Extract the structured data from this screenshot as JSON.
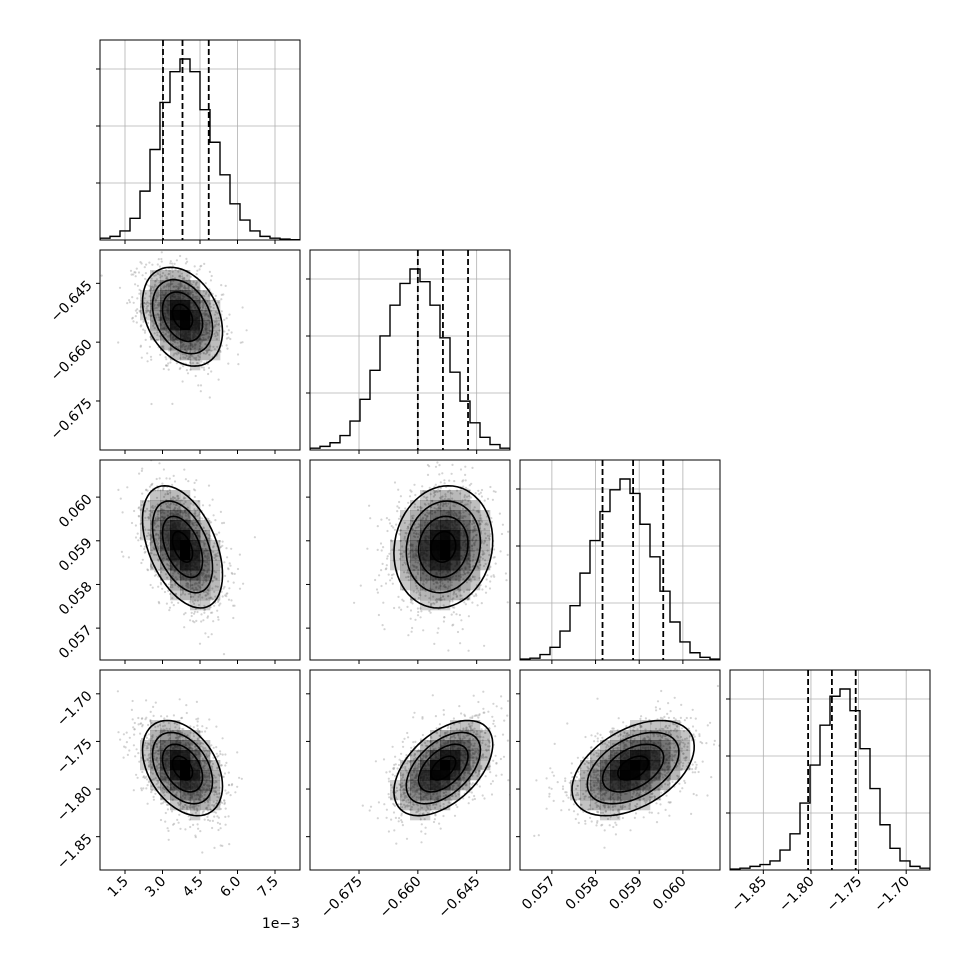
{
  "chart_data": {
    "type": "corner",
    "parameters": [
      {
        "range": [
          0.0005,
          0.0085
        ],
        "ticks": [
          0.0015,
          0.003,
          0.0045,
          0.006,
          0.0075
        ],
        "tick_labels": [
          "1.5",
          "3.0",
          "4.5",
          "6.0",
          "7.5"
        ],
        "offset_text": "1e−3",
        "mean": 0.0038,
        "sd": 0.0008,
        "quantiles": [
          0.00302,
          0.0038,
          0.00485
        ],
        "hist": [
          1,
          2,
          5,
          12,
          27,
          50,
          76,
          93,
          100,
          93,
          72,
          54,
          36,
          20,
          11,
          5,
          2,
          1,
          0.5,
          0.2
        ]
      },
      {
        "range": [
          -0.6875,
          -0.6365
        ],
        "ticks": [
          -0.675,
          -0.66,
          -0.645
        ],
        "tick_labels": [
          "−0.675",
          "−0.660",
          "−0.645"
        ],
        "offset_text": "",
        "mean": -0.6535,
        "sd": 0.0063,
        "quantiles": [
          -0.66,
          -0.6536,
          -0.6472
        ],
        "hist": [
          1,
          2,
          4,
          8,
          16,
          28,
          44,
          63,
          80,
          92,
          100,
          93,
          80,
          62,
          43,
          27,
          15,
          7,
          3,
          1
        ]
      },
      {
        "range": [
          0.05627,
          0.06085
        ],
        "ticks": [
          0.057,
          0.058,
          0.059,
          0.06
        ],
        "tick_labels": [
          "0.057",
          "0.058",
          "0.059",
          "0.060"
        ],
        "offset_text": "",
        "mean": 0.05886,
        "sd": 0.0007,
        "quantiles": [
          0.05816,
          0.05886,
          0.05955
        ],
        "hist": [
          0.5,
          1,
          3,
          7,
          16,
          30,
          48,
          66,
          82,
          94,
          100,
          92,
          75,
          57,
          38,
          21,
          10,
          4,
          1.5,
          0.5
        ]
      },
      {
        "range": [
          -1.885,
          -1.675
        ],
        "ticks": [
          -1.85,
          -1.8,
          -1.75,
          -1.7
        ],
        "tick_labels": [
          "−1.85",
          "−1.80",
          "−1.75",
          "−1.70"
        ],
        "offset_text": "",
        "mean": -1.778,
        "sd": 0.025,
        "quantiles": [
          -1.803,
          -1.778,
          -1.753
        ],
        "hist": [
          0.5,
          1,
          2,
          3,
          5,
          11,
          20,
          37,
          58,
          80,
          96,
          100,
          88,
          67,
          45,
          25,
          12,
          5,
          2,
          1
        ]
      }
    ],
    "correlations": {
      "1-0": -0.3,
      "2-0": -0.45,
      "2-1": 0.1,
      "3-0": -0.38,
      "3-1": 0.5,
      "3-2": 0.45
    },
    "contour_levels_sigma": [
      0.5,
      1.0,
      1.5,
      2.0
    ],
    "grid": true,
    "colors": {
      "hist": "#000000",
      "scatter": "#9e9e9e",
      "density": "#000000",
      "contour": "#000000"
    }
  }
}
